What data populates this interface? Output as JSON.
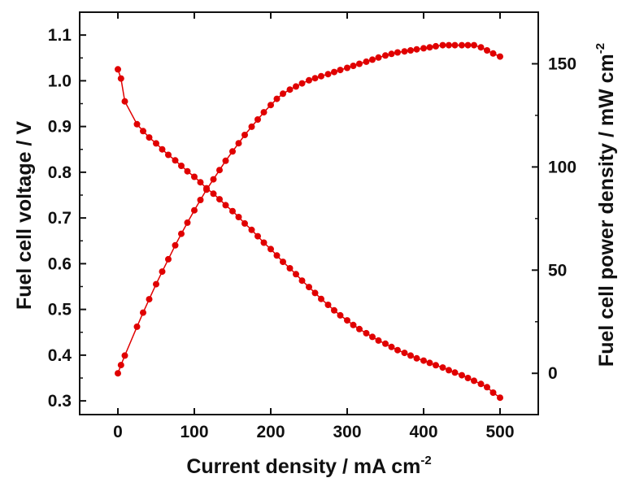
{
  "chart_data": {
    "type": "line",
    "xlabel": {
      "text": "Current density / mA cm",
      "sup": "-2"
    },
    "ylabel_left": {
      "text": "Fuel cell voltage / V"
    },
    "ylabel_right": {
      "text": "Fuel cell power density / mW cm",
      "sup": "-2"
    },
    "xlim": [
      -50,
      550
    ],
    "ylim_left": [
      0.27,
      1.15
    ],
    "ylim_right": [
      -20,
      175
    ],
    "xticks": [
      0,
      100,
      200,
      300,
      400,
      500
    ],
    "yticks_left": [
      0.3,
      0.4,
      0.5,
      0.6,
      0.7,
      0.8,
      0.9,
      1.0,
      1.1
    ],
    "yticks_right": [
      0,
      50,
      100,
      150
    ],
    "grid": false,
    "series_color": "#e00000",
    "series": [
      {
        "axis": "left",
        "x": [
          0,
          4,
          9,
          25,
          33,
          41,
          50,
          58,
          66,
          75,
          83,
          91,
          100,
          108,
          116,
          125,
          133,
          141,
          150,
          158,
          166,
          175,
          183,
          191,
          200,
          208,
          216,
          225,
          233,
          241,
          250,
          258,
          266,
          275,
          283,
          291,
          300,
          308,
          316,
          325,
          333,
          341,
          350,
          358,
          366,
          375,
          383,
          391,
          400,
          408,
          416,
          425,
          433,
          441,
          450,
          458,
          466,
          475,
          483,
          491,
          500
        ],
        "y": [
          1.025,
          1.005,
          0.955,
          0.905,
          0.89,
          0.876,
          0.863,
          0.85,
          0.838,
          0.826,
          0.814,
          0.802,
          0.79,
          0.778,
          0.765,
          0.753,
          0.741,
          0.728,
          0.715,
          0.702,
          0.688,
          0.674,
          0.66,
          0.646,
          0.632,
          0.618,
          0.604,
          0.59,
          0.577,
          0.563,
          0.549,
          0.536,
          0.523,
          0.51,
          0.498,
          0.487,
          0.476,
          0.466,
          0.457,
          0.448,
          0.44,
          0.432,
          0.425,
          0.418,
          0.411,
          0.405,
          0.399,
          0.393,
          0.388,
          0.383,
          0.378,
          0.373,
          0.367,
          0.362,
          0.356,
          0.35,
          0.344,
          0.337,
          0.33,
          0.318,
          0.307
        ]
      },
      {
        "axis": "right",
        "x": [
          0,
          4,
          9,
          25,
          33,
          41,
          50,
          58,
          66,
          75,
          83,
          91,
          100,
          108,
          116,
          125,
          133,
          141,
          150,
          158,
          166,
          175,
          183,
          191,
          200,
          208,
          216,
          225,
          233,
          241,
          250,
          258,
          266,
          275,
          283,
          291,
          300,
          308,
          316,
          325,
          333,
          341,
          350,
          358,
          366,
          375,
          383,
          391,
          400,
          408,
          416,
          425,
          433,
          441,
          450,
          458,
          466,
          475,
          483,
          491,
          500
        ],
        "y": [
          0,
          4,
          8.6,
          22.6,
          29.4,
          35.9,
          43.2,
          49.3,
          55.3,
          62,
          67.6,
          73,
          79,
          84,
          89,
          94,
          98.5,
          103,
          107.5,
          111.5,
          115.5,
          119.5,
          123,
          126.5,
          130,
          133,
          135.5,
          137.5,
          139,
          140.5,
          142,
          143,
          144,
          145,
          146,
          147,
          148,
          149,
          150,
          151,
          152,
          153,
          154,
          154.8,
          155.5,
          156,
          156.5,
          157,
          157.5,
          158,
          158.5,
          159,
          159,
          159,
          159,
          159,
          159,
          158,
          156.5,
          155,
          153.5
        ]
      }
    ]
  }
}
